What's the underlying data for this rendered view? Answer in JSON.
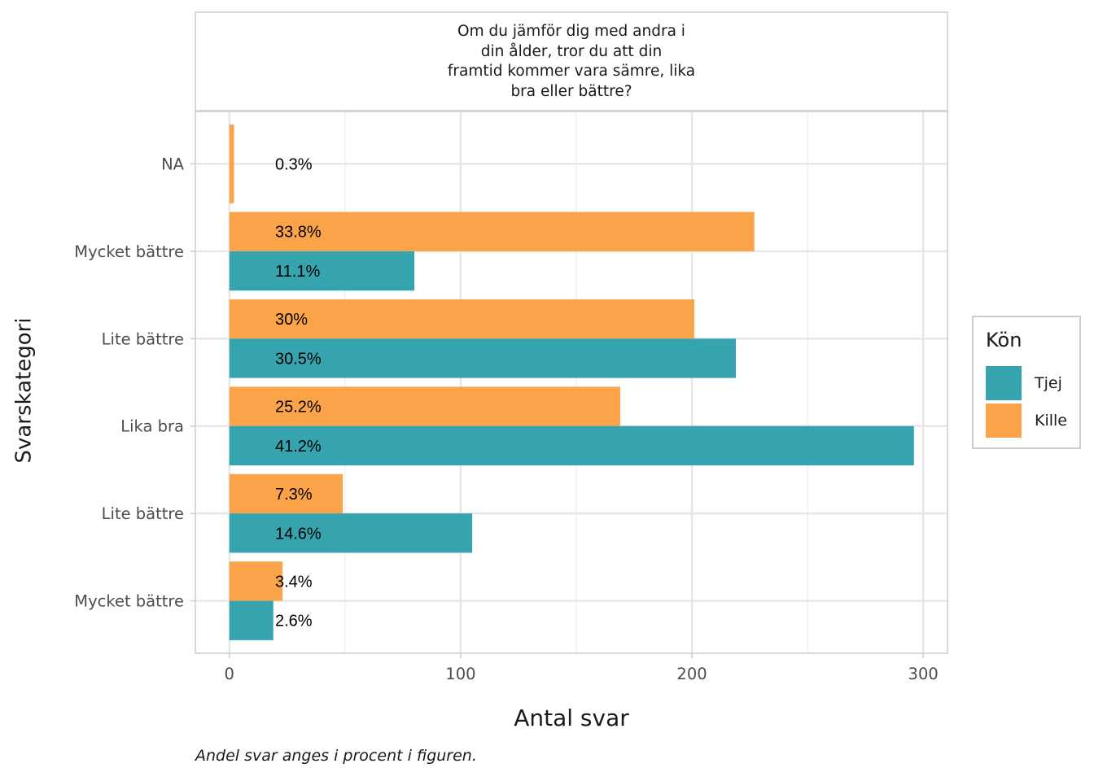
{
  "facet_title": "Om du jämför dig med andra i\ndin ålder, tror du att din\nframtid kommer vara sämre, lika\nbra eller bättre?",
  "xlabel": "Antal svar",
  "ylabel": "Svarskategori",
  "caption": "Andel svar anges i procent i figuren.",
  "legend": {
    "title": "Kön",
    "items": [
      {
        "label": "Tjej",
        "color": "#35A4AF"
      },
      {
        "label": "Kille",
        "color": "#FBA349"
      }
    ]
  },
  "chart_data": {
    "type": "bar",
    "orientation": "horizontal",
    "categories": [
      "NA",
      "Mycket bättre",
      "Lite bättre",
      "Lika bra",
      "Lite bättre",
      "Mycket bättre"
    ],
    "series": [
      {
        "name": "Kille",
        "color": "#FBA349",
        "values": [
          2,
          227,
          201,
          169,
          49,
          23
        ],
        "labels": [
          "0.3%",
          "33.8%",
          "30%",
          "25.2%",
          "7.3%",
          "3.4%"
        ]
      },
      {
        "name": "Tjej",
        "color": "#35A4AF",
        "values": [
          null,
          80,
          219,
          296,
          105,
          19
        ],
        "labels": [
          "",
          "11.1%",
          "30.5%",
          "41.2%",
          "14.6%",
          "2.6%"
        ]
      }
    ],
    "xlabel": "Antal svar",
    "ylabel": "Svarskategori",
    "xlim": [
      -14.7,
      310.5
    ],
    "xticks": [
      0,
      100,
      200,
      300
    ],
    "grid": true,
    "legend_position": "right"
  }
}
